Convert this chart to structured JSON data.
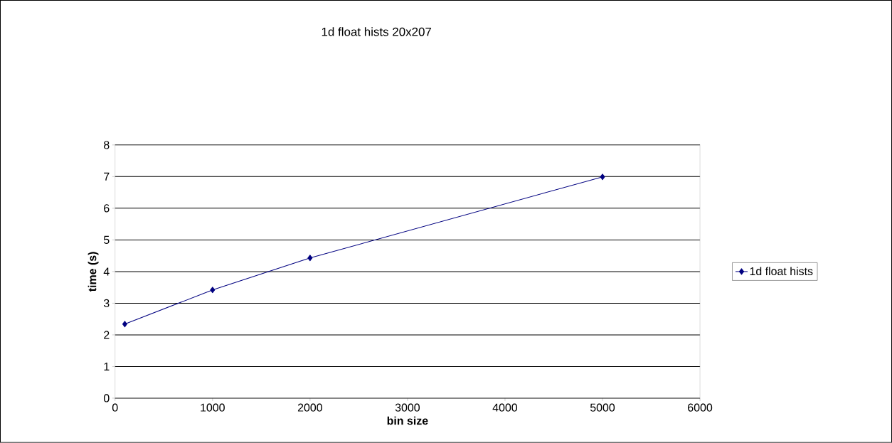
{
  "chart_data": {
    "type": "line",
    "title": "1d float hists 20x207",
    "xlabel": "bin size",
    "ylabel": "time (s)",
    "x": [
      100,
      1000,
      2000,
      5000
    ],
    "series": [
      {
        "name": "1d float hists",
        "color": "#000080",
        "values": [
          2.34,
          3.42,
          4.43,
          6.99
        ]
      }
    ],
    "xlim": [
      0,
      6000
    ],
    "xticks": [
      0,
      1000,
      2000,
      3000,
      4000,
      5000,
      6000
    ],
    "ylim": [
      0,
      8
    ],
    "yticks": [
      0,
      1,
      2,
      3,
      4,
      5,
      6,
      7,
      8
    ],
    "grid": "y",
    "legend": "right",
    "marker": "diamond",
    "line_style": "solid"
  }
}
